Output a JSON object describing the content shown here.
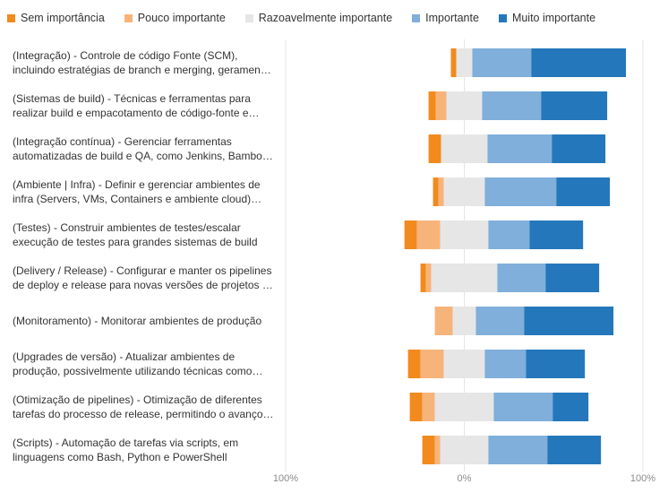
{
  "chart_data": {
    "type": "bar",
    "subtype": "diverging-stacked-horizontal",
    "legend_position": "top-left",
    "series": [
      {
        "name": "Sem importância",
        "color": "#F28A1E"
      },
      {
        "name": "Pouco importante",
        "color": "#F7B47A"
      },
      {
        "name": "Razoavelmente importante",
        "color": "#E6E6E6"
      },
      {
        "name": "Importante",
        "color": "#7FAFDA"
      },
      {
        "name": "Muito importante",
        "color": "#2477BB"
      }
    ],
    "categories": [
      "(Integração) - Controle de código Fonte (SCM), incluindo estratégias de branch e merging, geramen…",
      "(Sistemas de build) - Técnicas e ferramentas para realizar build e empacotamento de código-fonte e…",
      "(Integração contínua) - Gerenciar ferramentas automatizadas de build e QA, como Jenkins, Bambo…",
      "(Ambiente | Infra) - Definir e gerenciar ambientes de infra (Servers, VMs, Containers e ambiente cloud) pa…",
      "(Testes) - Construir ambientes de testes/escalar execução de testes para grandes sistemas de build",
      "(Delivery / Release) - Configurar e manter os pipelines de deploy e release para novas versões de projetos …",
      "(Monitoramento) - Monitorar ambientes de produção",
      "(Upgrades de versão) - Atualizar ambientes de produção, possivelmente utilizando técnicas como…",
      "(Otimização de pipelines) - Otimização de diferentes tarefas do processo de release, permitindo o avanço…",
      "(Scripts) - Automação de tarefas via scripts, em linguagens como Bash, Python e PowerShell"
    ],
    "values": [
      [
        3,
        0,
        9,
        33,
        53
      ],
      [
        4,
        6,
        20,
        33,
        37
      ],
      [
        7,
        0,
        26,
        36,
        30
      ],
      [
        3,
        3,
        23,
        40,
        30
      ],
      [
        7,
        13,
        27,
        23,
        30
      ],
      [
        3,
        3,
        37,
        27,
        30
      ],
      [
        0,
        10,
        13,
        27,
        50
      ],
      [
        7,
        13,
        23,
        23,
        33
      ],
      [
        7,
        7,
        33,
        33,
        20
      ],
      [
        7,
        3,
        27,
        33,
        30
      ]
    ],
    "xlim": [
      -100,
      100
    ],
    "x_ticks": [
      "100%",
      "0%",
      "100%"
    ]
  }
}
